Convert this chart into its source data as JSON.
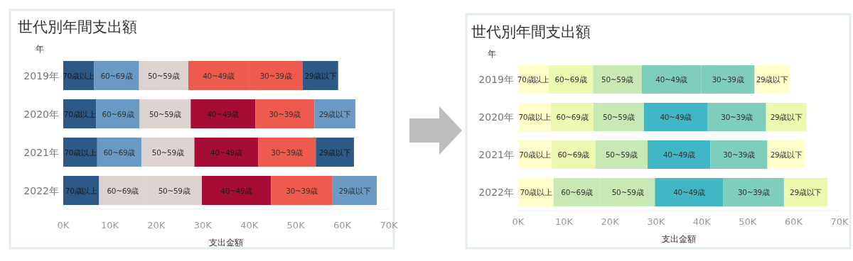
{
  "chart_data": [
    {
      "type": "bar",
      "orientation": "horizontal",
      "stacked": true,
      "title": "世代別年間支出額",
      "ylabel": "年",
      "xlabel": "支出金額",
      "categories": [
        "2019年",
        "2020年",
        "2021年",
        "2022年"
      ],
      "series": [
        {
          "name": "70歳以上",
          "values": [
            6600,
            7100,
            7300,
            7700
          ],
          "colors": [
            "#2c5985",
            "#2c5985",
            "#2c5985",
            "#2c5985"
          ]
        },
        {
          "name": "60~69歳",
          "values": [
            9700,
            9300,
            9500,
            10200
          ],
          "colors": [
            "#6a9ac4",
            "#6a9ac4",
            "#6a9ac4",
            "#ddd3d0"
          ]
        },
        {
          "name": "50~59歳",
          "values": [
            10600,
            11000,
            11400,
            11900
          ],
          "colors": [
            "#ddd3d0",
            "#ddd3d0",
            "#ddd3d0",
            "#ddd3d0"
          ]
        },
        {
          "name": "40~49歳",
          "values": [
            13000,
            13900,
            13700,
            14900
          ],
          "colors": [
            "#ef5a4e",
            "#a50d35",
            "#a50d35",
            "#a50d35"
          ]
        },
        {
          "name": "30~39歳",
          "values": [
            11600,
            12700,
            12400,
            13200
          ],
          "colors": [
            "#ef5a4e",
            "#ef5a4e",
            "#ef5a4e",
            "#ef5a4e"
          ]
        },
        {
          "name": "29歳以下",
          "values": [
            7600,
            8800,
            8200,
            9500
          ],
          "colors": [
            "#2c5985",
            "#6a9ac4",
            "#2c5985",
            "#6a9ac4"
          ]
        }
      ],
      "xlim": [
        0,
        70000
      ],
      "xticks": [
        {
          "value": 0,
          "label": "0K"
        },
        {
          "value": 10000,
          "label": "10K"
        },
        {
          "value": 20000,
          "label": "20K"
        },
        {
          "value": 30000,
          "label": "30K"
        },
        {
          "value": 40000,
          "label": "40K"
        },
        {
          "value": 50000,
          "label": "50K"
        },
        {
          "value": 60000,
          "label": "60K"
        },
        {
          "value": 70000,
          "label": "70K"
        }
      ]
    },
    {
      "type": "bar",
      "orientation": "horizontal",
      "stacked": true,
      "title": "世代別年間支出額",
      "ylabel": "年",
      "xlabel": "支出金額",
      "categories": [
        "2019年",
        "2020年",
        "2021年",
        "2022年"
      ],
      "series": [
        {
          "name": "70歳以上",
          "values": [
            6600,
            7100,
            7300,
            7700
          ],
          "colors": [
            "#ffffcc",
            "#ffffcc",
            "#ffffcc",
            "#ffffcc"
          ]
        },
        {
          "name": "60~69歳",
          "values": [
            9700,
            9300,
            9500,
            10200
          ],
          "colors": [
            "#edf8b1",
            "#edf8b1",
            "#edf8b1",
            "#c7e9b4"
          ]
        },
        {
          "name": "50~59歳",
          "values": [
            10600,
            11000,
            11400,
            11900
          ],
          "colors": [
            "#c7e9b4",
            "#c7e9b4",
            "#c7e9b4",
            "#c7e9b4"
          ]
        },
        {
          "name": "40~49歳",
          "values": [
            13000,
            13900,
            13700,
            14900
          ],
          "colors": [
            "#7fcdbb",
            "#41b6c4",
            "#41b6c4",
            "#41b6c4"
          ]
        },
        {
          "name": "30~39歳",
          "values": [
            11600,
            12700,
            12400,
            13200
          ],
          "colors": [
            "#7fcdbb",
            "#7fcdbb",
            "#7fcdbb",
            "#7fcdbb"
          ]
        },
        {
          "name": "29歳以下",
          "values": [
            7600,
            8800,
            8200,
            9500
          ],
          "colors": [
            "#ffffcc",
            "#edf8b1",
            "#ffffcc",
            "#edf8b1"
          ]
        }
      ],
      "xlim": [
        0,
        70000
      ],
      "xticks": [
        {
          "value": 0,
          "label": "0K"
        },
        {
          "value": 10000,
          "label": "10K"
        },
        {
          "value": 20000,
          "label": "20K"
        },
        {
          "value": 30000,
          "label": "30K"
        },
        {
          "value": 40000,
          "label": "40K"
        },
        {
          "value": 50000,
          "label": "50K"
        },
        {
          "value": 60000,
          "label": "60K"
        },
        {
          "value": 70000,
          "label": "70K"
        }
      ]
    }
  ]
}
